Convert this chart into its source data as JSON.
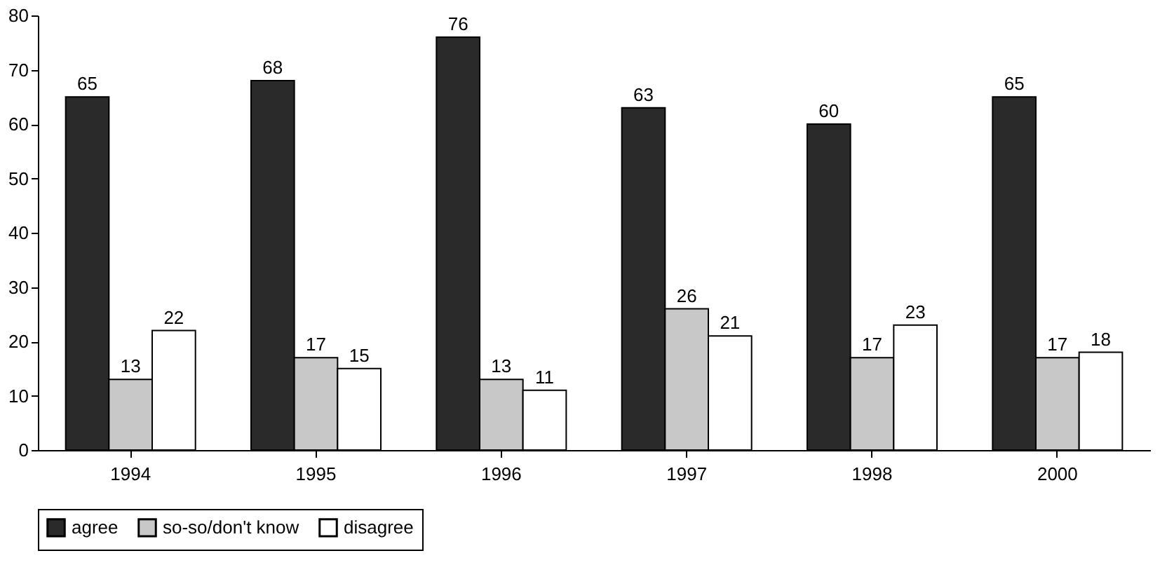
{
  "chart_data": {
    "type": "bar",
    "categories": [
      "1994",
      "1995",
      "1996",
      "1997",
      "1998",
      "2000"
    ],
    "series": [
      {
        "name": "agree",
        "color": "#2a2a2a",
        "values": [
          65,
          68,
          76,
          63,
          60,
          65
        ]
      },
      {
        "name": "so-so/don't know",
        "color": "#c8c8c8",
        "values": [
          13,
          17,
          13,
          26,
          17,
          17
        ]
      },
      {
        "name": "disagree",
        "color": "#ffffff",
        "values": [
          22,
          15,
          11,
          21,
          23,
          18
        ]
      }
    ],
    "ylim": [
      0,
      80
    ],
    "yticks": [
      0,
      10,
      20,
      30,
      40,
      50,
      60,
      70,
      80
    ],
    "grid": false,
    "legend": "bottom",
    "data_labels": true
  }
}
